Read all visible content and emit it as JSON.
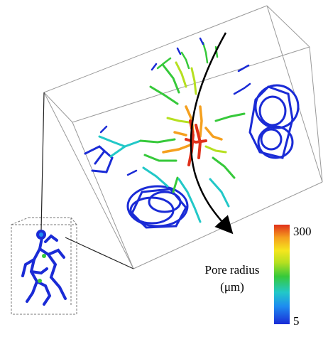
{
  "figure": {
    "legend_title_line1": "Pore radius",
    "legend_title_line2": "(μm)",
    "scale_max": "300",
    "scale_min": "5",
    "colormap": [
      "#1a2bd6",
      "#1e8cf0",
      "#22c8c8",
      "#36c93a",
      "#b6e020",
      "#f5e61e",
      "#f5a01e",
      "#e0301a"
    ],
    "arrow_color": "#000000",
    "network_base_color": "#1a2bd6"
  }
}
